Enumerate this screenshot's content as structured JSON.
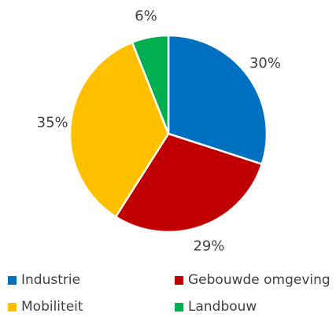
{
  "chart_data": {
    "type": "pie",
    "title": "",
    "categories": [
      "Industrie",
      "Gebouwde omgeving",
      "Mobiliteit",
      "Landbouw"
    ],
    "values": [
      30,
      29,
      35,
      6
    ],
    "value_labels": [
      "30%",
      "29%",
      "35%",
      "6%"
    ],
    "colors": [
      "#0070C0",
      "#C00000",
      "#FFC000",
      "#00B050"
    ],
    "start_angle": "12 o'clock",
    "direction": "clockwise",
    "legend_position": "bottom"
  }
}
